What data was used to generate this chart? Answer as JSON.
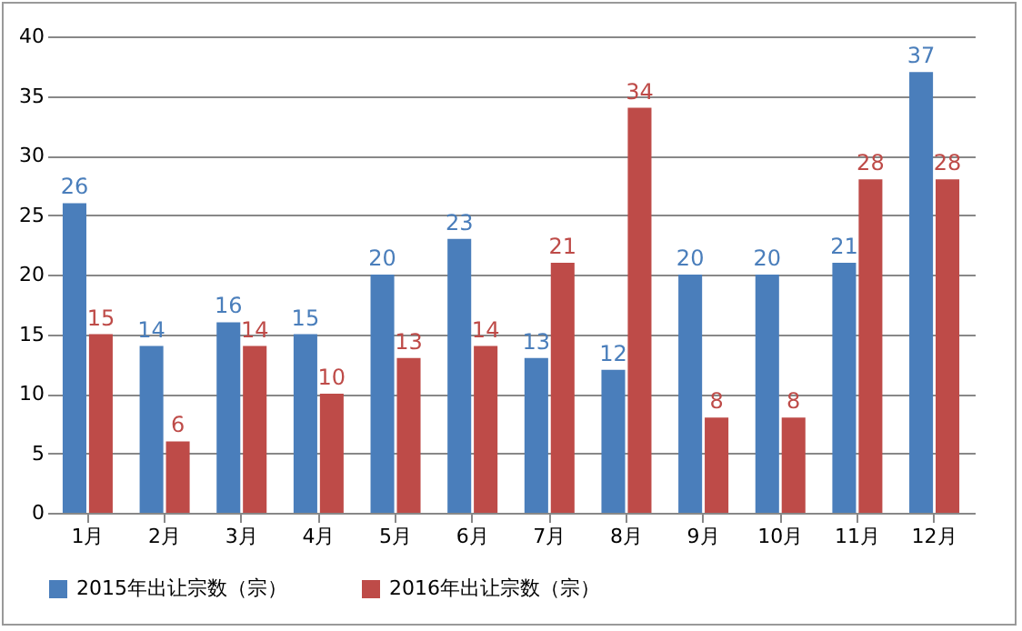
{
  "chart_data": {
    "type": "bar",
    "categories": [
      "1月",
      "2月",
      "3月",
      "4月",
      "5月",
      "6月",
      "7月",
      "8月",
      "9月",
      "10月",
      "11月",
      "12月"
    ],
    "series": [
      {
        "name": "2015年出让宗数（宗）",
        "color": "#4a7ebb",
        "values": [
          26,
          14,
          16,
          15,
          20,
          23,
          13,
          12,
          20,
          20,
          21,
          37
        ]
      },
      {
        "name": "2016年出让宗数（宗）",
        "color": "#be4b48",
        "values": [
          15,
          6,
          14,
          10,
          13,
          14,
          21,
          34,
          8,
          8,
          28,
          28
        ]
      }
    ],
    "ylim": [
      0,
      40
    ],
    "yticks": [
      0,
      5,
      10,
      15,
      20,
      25,
      30,
      35,
      40
    ],
    "grid": "y",
    "legend": "bottom",
    "data_labels": true
  }
}
